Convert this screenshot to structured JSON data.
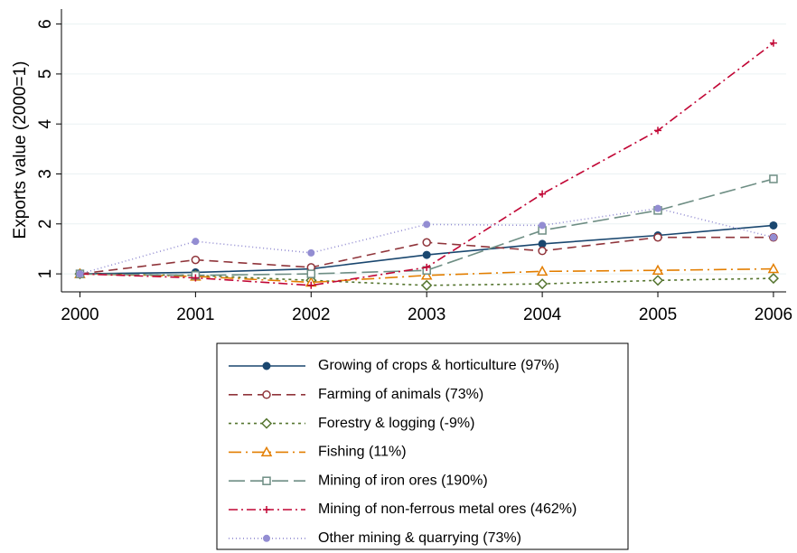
{
  "chart_data": {
    "type": "line",
    "y_label": "Exports value (2000=1)",
    "x": [
      2000,
      2001,
      2002,
      2003,
      2004,
      2005,
      2006
    ],
    "xlim": [
      1999.84,
      2006.11
    ],
    "xticks": [
      2000,
      2001,
      2002,
      2003,
      2004,
      2005,
      2006
    ],
    "ylim": [
      0.64,
      6.3
    ],
    "yticks": [
      1,
      2,
      3,
      4,
      5,
      6
    ],
    "grid": true,
    "legend": "bottom",
    "series": [
      {
        "name": "Growing of crops & horticulture (97%)",
        "color": "#1a476f",
        "marker": "circle-filled",
        "dash": "solid",
        "values": [
          1,
          1.03,
          1.1,
          1.38,
          1.6,
          1.77,
          1.97
        ]
      },
      {
        "name": "Farming of animals (73%)",
        "color": "#90353b",
        "marker": "circle-hollow",
        "dash": "long",
        "values": [
          1,
          1.28,
          1.13,
          1.63,
          1.46,
          1.73,
          1.73
        ]
      },
      {
        "name": "Forestry & logging  (-9%)",
        "color": "#55752f",
        "marker": "diamond-hollow",
        "dash": "short",
        "values": [
          1,
          0.97,
          0.87,
          0.77,
          0.8,
          0.87,
          0.91
        ]
      },
      {
        "name": "Fishing (11%)",
        "color": "#e37e00",
        "marker": "triangle-hollow",
        "dash": "longdot",
        "values": [
          1,
          0.95,
          0.83,
          0.97,
          1.05,
          1.07,
          1.1
        ]
      },
      {
        "name": "Mining of iron ores (190%)",
        "color": "#6e8e84",
        "marker": "square-hollow",
        "dash": "verylong",
        "values": [
          1,
          0.97,
          1.0,
          1.07,
          1.87,
          2.27,
          2.9
        ]
      },
      {
        "name": "Mining of non-ferrous metal ores (462%)",
        "color": "#c10534",
        "marker": "plus",
        "dash": "dashdot",
        "values": [
          1,
          0.92,
          0.77,
          1.13,
          2.6,
          3.87,
          5.62
        ]
      },
      {
        "name": "Other mining & quarrying (73%)",
        "color": "#938dd2",
        "marker": "dot",
        "dash": "dotted",
        "values": [
          1,
          1.65,
          1.42,
          1.99,
          1.97,
          2.31,
          1.73
        ]
      }
    ]
  }
}
